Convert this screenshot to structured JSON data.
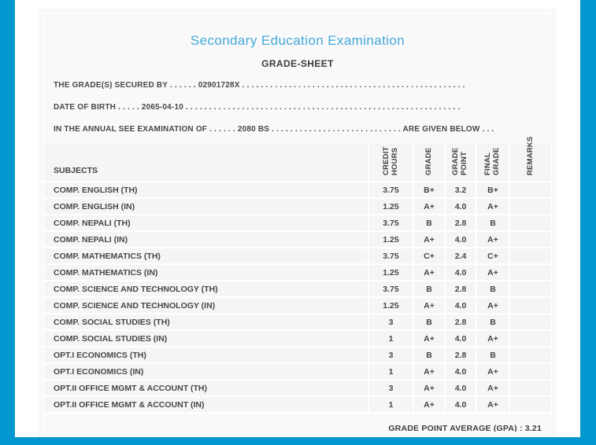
{
  "accent_color": "#0398CF",
  "card_color": "#f9f9f9",
  "row_color": "#f4f5f5",
  "title_color": "#45A9DD",
  "header": {
    "title": "Secondary Education Examination",
    "subtitle": "GRADE-SHEET"
  },
  "info_lines": {
    "grades_secured_by": "THE GRADE(S) SECURED BY . . . . . . 02901728X . . . . . . . . . . . . . . . . . . . . . . . . . . . . . . . . . . . . . . . . . . . . . . . . . . . . . . . . . . . . . . . . . . . .",
    "date_of_birth": "DATE OF BIRTH . . . . . 2065-04-10 . . . . . . . . . . . . . . . . . . . . . . . . . . . . . . . . . . . . . . . . . . . . . . . . . . . . . . . . . . . . . . . . . . . . . . . .",
    "examination": "IN THE ANNUAL SEE EXAMINATION OF . . . . . . 2080 BS . . . . . . . . . . . . . . . . . . . . . . . . . . . . ARE GIVEN BELOW . . ."
  },
  "table": {
    "columns": [
      "SUBJECTS",
      "CREDIT HOURS",
      "GRADE",
      "GRADE POINT",
      "FINAL GRADE",
      "REMARKS"
    ],
    "rows": [
      {
        "subject": "COMP. ENGLISH (TH)",
        "credit_hours": "3.75",
        "grade": "B+",
        "grade_point": "3.2",
        "final_grade": "B+",
        "remarks": ""
      },
      {
        "subject": "COMP. ENGLISH (IN)",
        "credit_hours": "1.25",
        "grade": "A+",
        "grade_point": "4.0",
        "final_grade": "A+",
        "remarks": ""
      },
      {
        "subject": "COMP. NEPALI (TH)",
        "credit_hours": "3.75",
        "grade": "B",
        "grade_point": "2.8",
        "final_grade": "B",
        "remarks": ""
      },
      {
        "subject": "COMP. NEPALI (IN)",
        "credit_hours": "1.25",
        "grade": "A+",
        "grade_point": "4.0",
        "final_grade": "A+",
        "remarks": ""
      },
      {
        "subject": "COMP. MATHEMATICS (TH)",
        "credit_hours": "3.75",
        "grade": "C+",
        "grade_point": "2.4",
        "final_grade": "C+",
        "remarks": ""
      },
      {
        "subject": "COMP. MATHEMATICS (IN)",
        "credit_hours": "1.25",
        "grade": "A+",
        "grade_point": "4.0",
        "final_grade": "A+",
        "remarks": ""
      },
      {
        "subject": "COMP. SCIENCE AND TECHNOLOGY (TH)",
        "credit_hours": "3.75",
        "grade": "B",
        "grade_point": "2.8",
        "final_grade": "B",
        "remarks": ""
      },
      {
        "subject": "COMP. SCIENCE AND TECHNOLOGY (IN)",
        "credit_hours": "1.25",
        "grade": "A+",
        "grade_point": "4.0",
        "final_grade": "A+",
        "remarks": ""
      },
      {
        "subject": "COMP. SOCIAL STUDIES (TH)",
        "credit_hours": "3",
        "grade": "B",
        "grade_point": "2.8",
        "final_grade": "B",
        "remarks": ""
      },
      {
        "subject": "COMP. SOCIAL STUDIES (IN)",
        "credit_hours": "1",
        "grade": "A+",
        "grade_point": "4.0",
        "final_grade": "A+",
        "remarks": ""
      },
      {
        "subject": "OPT.I ECONOMICS (TH)",
        "credit_hours": "3",
        "grade": "B",
        "grade_point": "2.8",
        "final_grade": "B",
        "remarks": ""
      },
      {
        "subject": "OPT.I ECONOMICS (IN)",
        "credit_hours": "1",
        "grade": "A+",
        "grade_point": "4.0",
        "final_grade": "A+",
        "remarks": ""
      },
      {
        "subject": "OPT.II OFFICE MGMT & ACCOUNT (TH)",
        "credit_hours": "3",
        "grade": "A+",
        "grade_point": "4.0",
        "final_grade": "A+",
        "remarks": ""
      },
      {
        "subject": "OPT.II OFFICE MGMT & ACCOUNT (IN)",
        "credit_hours": "1",
        "grade": "A+",
        "grade_point": "4.0",
        "final_grade": "A+",
        "remarks": ""
      }
    ]
  },
  "footer": {
    "gpa_text": "GRADE POINT AVERAGE (GPA) : 3.21",
    "gpa_value": "3.21"
  }
}
